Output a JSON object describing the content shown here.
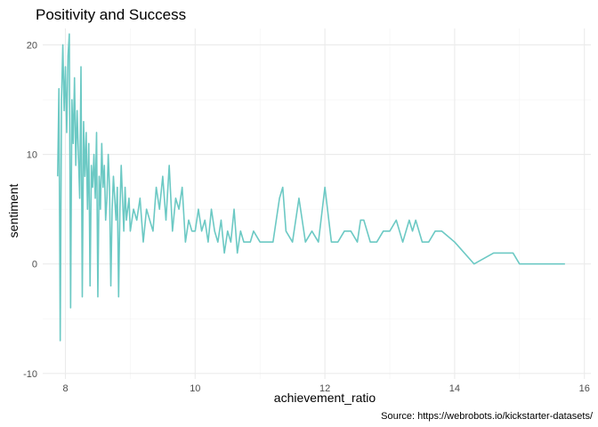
{
  "chart_data": {
    "type": "line",
    "title": "Positivity and Success",
    "xlabel": "achievement_ratio",
    "ylabel": "sentiment",
    "caption": "Source: https://webrobots.io/kickstarter-datasets/",
    "xlim": [
      7.65,
      16.1
    ],
    "ylim": [
      -10.5,
      21.5
    ],
    "x_ticks": [
      8,
      10,
      12,
      14,
      16
    ],
    "y_ticks": [
      -10,
      0,
      10,
      20
    ],
    "grid": true,
    "legend": "none",
    "series_color": "#6cc9c4",
    "series": [
      {
        "x": [
          7.88,
          7.9,
          7.92,
          7.94,
          7.96,
          7.98,
          8.0,
          8.02,
          8.04,
          8.06,
          8.08,
          8.1,
          8.12,
          8.14,
          8.16,
          8.18,
          8.2,
          8.22,
          8.24,
          8.26,
          8.28,
          8.3,
          8.32,
          8.34,
          8.36,
          8.38,
          8.4,
          8.42,
          8.44,
          8.46,
          8.48,
          8.5,
          8.52,
          8.54,
          8.56,
          8.58,
          8.6,
          8.62,
          8.64,
          8.66,
          8.68,
          8.7,
          8.72,
          8.74,
          8.76,
          8.78,
          8.8,
          8.82,
          8.84,
          8.86,
          8.88,
          8.9,
          8.92,
          8.94,
          8.96,
          8.98,
          9.0,
          9.05,
          9.1,
          9.15,
          9.2,
          9.25,
          9.3,
          9.35,
          9.4,
          9.45,
          9.5,
          9.55,
          9.6,
          9.65,
          9.7,
          9.75,
          9.8,
          9.85,
          9.9,
          9.95,
          10.0,
          10.05,
          10.1,
          10.15,
          10.2,
          10.25,
          10.3,
          10.35,
          10.4,
          10.45,
          10.5,
          10.55,
          10.6,
          10.65,
          10.7,
          10.75,
          10.8,
          10.85,
          10.9,
          11.0,
          11.1,
          11.2,
          11.3,
          11.35,
          11.4,
          11.5,
          11.6,
          11.7,
          11.8,
          11.9,
          12.0,
          12.1,
          12.2,
          12.3,
          12.4,
          12.5,
          12.55,
          12.6,
          12.7,
          12.8,
          12.9,
          13.0,
          13.1,
          13.2,
          13.3,
          13.35,
          13.4,
          13.5,
          13.6,
          13.7,
          13.8,
          14.0,
          14.3,
          14.6,
          14.8,
          14.85,
          14.9,
          15.0,
          15.7
        ],
        "y": [
          8,
          16,
          -7,
          15,
          20,
          14,
          18,
          12,
          19,
          21,
          -4,
          15,
          11,
          17,
          9,
          14,
          10,
          6,
          18,
          -3,
          13,
          8,
          12,
          5,
          11,
          -2,
          9,
          7,
          10,
          6,
          12,
          -3,
          8,
          5,
          11,
          7,
          9,
          4,
          6,
          10,
          7,
          -2,
          5,
          8,
          6,
          4,
          7,
          -3,
          5,
          9,
          6,
          3,
          7,
          4,
          5,
          6,
          3,
          5,
          4,
          6,
          2,
          5,
          4,
          3,
          7,
          5,
          8,
          4,
          9,
          3,
          6,
          5,
          7,
          2,
          4,
          3,
          3,
          5,
          3,
          4,
          2,
          5,
          3,
          2,
          4,
          1,
          3,
          2,
          5,
          1,
          3,
          2,
          2,
          2,
          3,
          2,
          2,
          2,
          6,
          7,
          3,
          2,
          6,
          2,
          3,
          2,
          7,
          2,
          2,
          3,
          3,
          2,
          4,
          4,
          2,
          2,
          3,
          3,
          4,
          2,
          4,
          3,
          4,
          2,
          2,
          3,
          3,
          2,
          0,
          1,
          1,
          1,
          1,
          0,
          0
        ]
      }
    ]
  }
}
